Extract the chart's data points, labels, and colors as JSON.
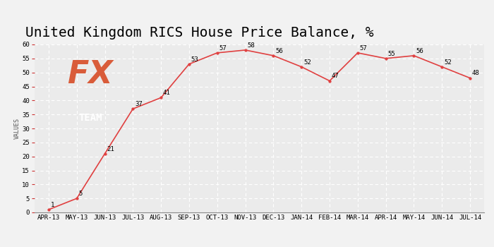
{
  "title": "United Kingdom RICS House Price Balance, %",
  "ylabel": "VALUES",
  "categories": [
    "APR-13",
    "MAY-13",
    "JUN-13",
    "JUL-13",
    "AUG-13",
    "SEP-13",
    "OCT-13",
    "NOV-13",
    "DEC-13",
    "JAN-14",
    "FEB-14",
    "MAR-14",
    "APR-14",
    "MAY-14",
    "JUN-14",
    "JUL-14"
  ],
  "values": [
    1,
    5,
    21,
    37,
    41,
    53,
    57,
    58,
    56,
    52,
    47,
    57,
    55,
    56,
    52,
    48
  ],
  "line_color": "#e04040",
  "marker_color": "#e04040",
  "bg_color": "#f2f2f2",
  "plot_bg_color": "#ebebeb",
  "grid_color": "#ffffff",
  "ylim": [
    0,
    60
  ],
  "yticks": [
    0,
    5,
    10,
    15,
    20,
    25,
    30,
    35,
    40,
    45,
    50,
    55,
    60
  ],
  "title_fontsize": 14,
  "ylabel_fontsize": 6,
  "tick_fontsize": 6.5,
  "annotation_fontsize": 6.5,
  "logo_bg": "#6b6b6b",
  "logo_fx_color": "#d95c3a",
  "logo_team_color": "#ffffff"
}
